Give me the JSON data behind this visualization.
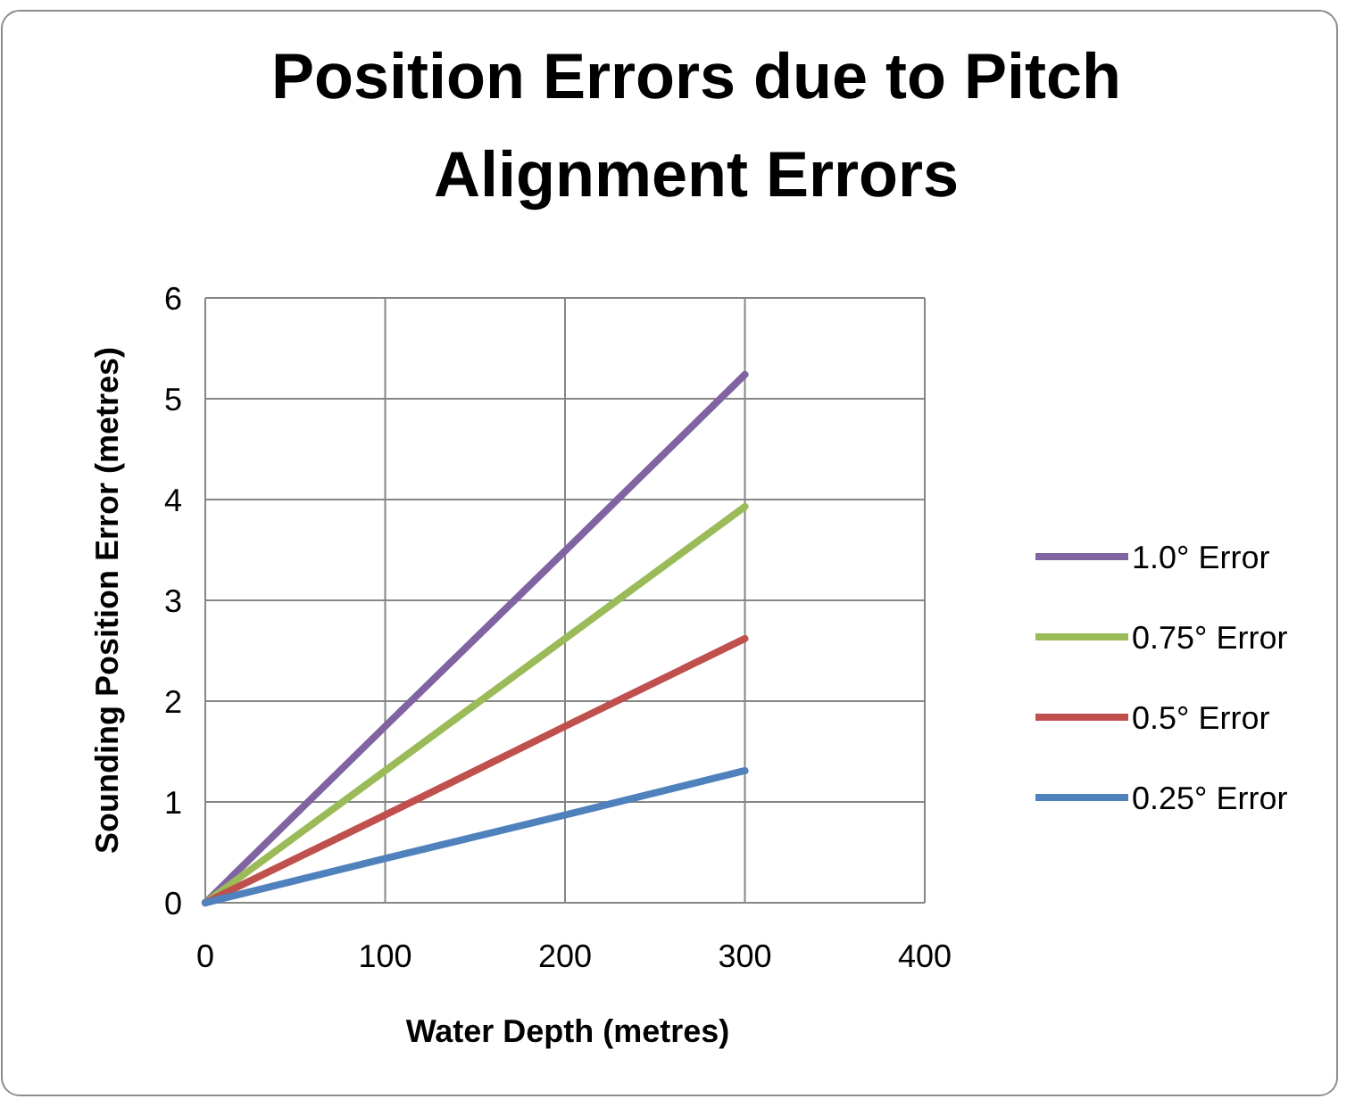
{
  "chart_data": {
    "type": "line",
    "title": "Position Errors due to Pitch Alignment Errors",
    "xlabel": "Water Depth (metres)",
    "ylabel": "Sounding Position Error (metres)",
    "x": [
      0,
      100,
      200,
      300
    ],
    "series": [
      {
        "name": "1.0° Error",
        "color": "#8064a2",
        "values": [
          0,
          1.75,
          3.49,
          5.24
        ]
      },
      {
        "name": "0.75° Error",
        "color": "#9bbb59",
        "values": [
          0,
          1.31,
          2.62,
          3.93
        ]
      },
      {
        "name": "0.5° Error",
        "color": "#c0504d",
        "values": [
          0,
          0.87,
          1.75,
          2.62
        ]
      },
      {
        "name": "0.25° Error",
        "color": "#4f81bd",
        "values": [
          0,
          0.44,
          0.87,
          1.31
        ]
      }
    ],
    "xlim": [
      0,
      400
    ],
    "xticks": [
      0,
      100,
      200,
      300,
      400
    ],
    "ylim": [
      0,
      6
    ],
    "yticks": [
      0,
      1,
      2,
      3,
      4,
      5,
      6
    ],
    "grid": true,
    "legend": "right",
    "marker": "none",
    "line_style": "solid"
  }
}
